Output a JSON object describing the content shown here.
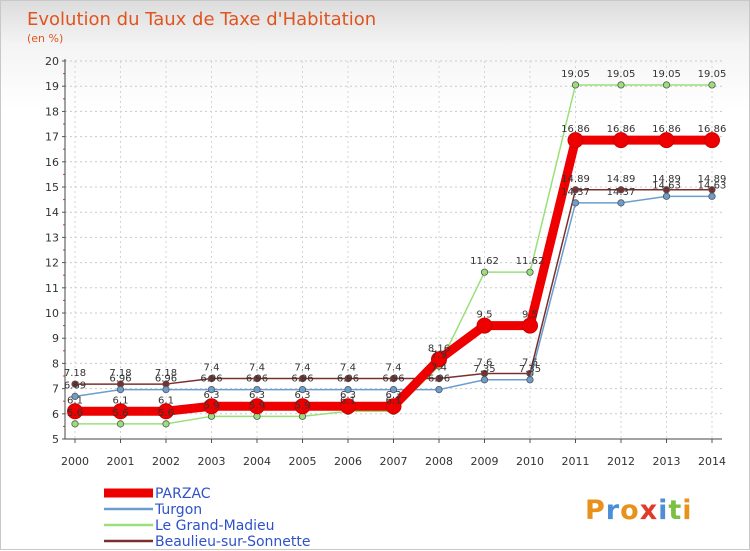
{
  "chart_data": {
    "type": "line",
    "title": "Evolution du Taux de Taxe d'Habitation",
    "subtitle": "(en %)",
    "xlabel": "",
    "ylabel": "",
    "ylim": [
      5,
      20
    ],
    "yticks": [
      "5",
      "6",
      "7",
      "8",
      "9",
      "10",
      "11",
      "12",
      "13",
      "14",
      "15",
      "16",
      "17",
      "18",
      "19",
      "20"
    ],
    "categories": [
      "2000",
      "2001",
      "2002",
      "2003",
      "2004",
      "2005",
      "2006",
      "2007",
      "2008",
      "2009",
      "2010",
      "2011",
      "2012",
      "2013",
      "2014"
    ],
    "grid": true,
    "legend_position": "bottom-left",
    "series": [
      {
        "name": "PARZAC",
        "color": "#ee0000",
        "values": [
          6.1,
          6.1,
          6.1,
          6.3,
          6.3,
          6.3,
          6.3,
          6.3,
          8.16,
          9.5,
          9.5,
          16.86,
          16.86,
          16.86,
          16.86
        ],
        "labels": [
          "6.1",
          "6.1",
          "6.1",
          "6.3",
          "6.3",
          "6.3",
          "6.3",
          "6.3",
          "8.16",
          "9.5",
          "9.5",
          "16.86",
          "16.86",
          "16.86",
          "16.86"
        ]
      },
      {
        "name": "Turgon",
        "color": "#6b9ecf",
        "values": [
          6.69,
          6.96,
          6.96,
          6.96,
          6.96,
          6.96,
          6.96,
          6.96,
          6.96,
          7.35,
          7.35,
          14.37,
          14.37,
          14.63,
          14.63
        ],
        "labels": [
          "6.69",
          "6.96",
          "6.96",
          "6.96",
          "6.96",
          "6.96",
          "6.96",
          "6.96",
          "6.96",
          "7.35",
          "7.35",
          "14.37",
          "14.37",
          "14.63",
          "14.63"
        ]
      },
      {
        "name": "Le Grand-Madieu",
        "color": "#99e07a",
        "values": [
          5.6,
          5.6,
          5.6,
          5.9,
          5.9,
          5.9,
          6.1,
          6.1,
          7.9,
          11.62,
          11.62,
          19.05,
          19.05,
          19.05,
          19.05
        ],
        "labels": [
          "5.6",
          "5.6",
          "5.6",
          "5.9",
          "5.9",
          "5.9",
          "6.1",
          "6.1",
          "7.9",
          "11.62",
          "11.62",
          "19.05",
          "19.05",
          "19.05",
          "19.05"
        ]
      },
      {
        "name": "Beaulieu-sur-Sonnette",
        "color": "#7b3030",
        "values": [
          7.18,
          7.18,
          7.18,
          7.4,
          7.4,
          7.4,
          7.4,
          7.4,
          7.4,
          7.6,
          7.6,
          14.89,
          14.89,
          14.89,
          14.89
        ],
        "labels": [
          "7.18",
          "7.18",
          "7.18",
          "7.4",
          "7.4",
          "7.4",
          "7.4",
          "7.4",
          "7.4",
          "7.6",
          "7.6",
          "14.89",
          "14.89",
          "14.89",
          "14.89"
        ]
      }
    ]
  },
  "logo": {
    "text": "Proxiti",
    "colors": [
      "#e8921c",
      "#4d8fd6",
      "#e8921c",
      "#e03a2a",
      "#4d8fd6",
      "#7ac143",
      "#e8921c"
    ]
  }
}
